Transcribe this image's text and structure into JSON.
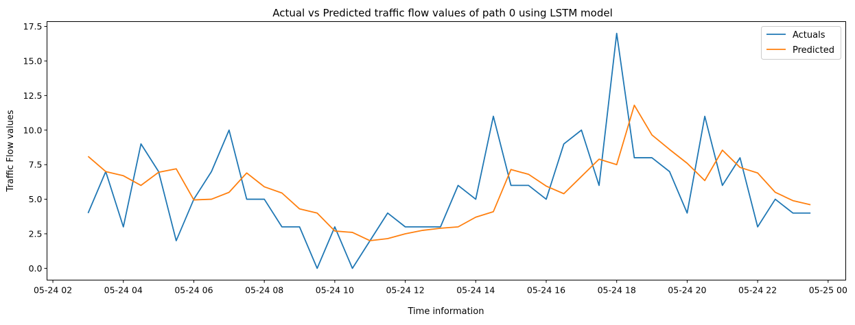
{
  "chart_data": {
    "type": "line",
    "title": "Actual vs Predicted traffic flow values of path 0 using LSTM model",
    "xlabel": "Time information",
    "ylabel": "Traffic Flow values",
    "x_tick_labels": [
      "05-24 02",
      "05-24 04",
      "05-24 06",
      "05-24 08",
      "05-24 10",
      "05-24 12",
      "05-24 14",
      "05-24 16",
      "05-24 18",
      "05-24 20",
      "05-24 22",
      "05-25 00"
    ],
    "y_tick_labels": [
      "0.0",
      "2.5",
      "5.0",
      "7.5",
      "10.0",
      "12.5",
      "15.0",
      "17.5"
    ],
    "y_ticks": [
      0,
      2.5,
      5,
      7.5,
      10,
      12.5,
      15,
      17.5
    ],
    "xlim": [
      "2024-05-24 01:50",
      "2024-05-25 00:30"
    ],
    "ylim": [
      -0.85,
      17.85
    ],
    "x": [
      "2024-05-24 03:00",
      "2024-05-24 03:30",
      "2024-05-24 04:00",
      "2024-05-24 04:30",
      "2024-05-24 05:00",
      "2024-05-24 05:30",
      "2024-05-24 06:00",
      "2024-05-24 06:30",
      "2024-05-24 07:00",
      "2024-05-24 07:30",
      "2024-05-24 08:00",
      "2024-05-24 08:30",
      "2024-05-24 09:00",
      "2024-05-24 09:30",
      "2024-05-24 10:00",
      "2024-05-24 10:30",
      "2024-05-24 11:00",
      "2024-05-24 11:30",
      "2024-05-24 12:00",
      "2024-05-24 12:30",
      "2024-05-24 13:00",
      "2024-05-24 13:30",
      "2024-05-24 14:00",
      "2024-05-24 14:30",
      "2024-05-24 15:00",
      "2024-05-24 15:30",
      "2024-05-24 16:00",
      "2024-05-24 16:30",
      "2024-05-24 17:00",
      "2024-05-24 17:30",
      "2024-05-24 18:00",
      "2024-05-24 18:30",
      "2024-05-24 19:00",
      "2024-05-24 19:30",
      "2024-05-24 20:00",
      "2024-05-24 20:30",
      "2024-05-24 21:00",
      "2024-05-24 21:30",
      "2024-05-24 22:00",
      "2024-05-24 22:30",
      "2024-05-24 23:00",
      "2024-05-24 23:30"
    ],
    "series": [
      {
        "name": "Actuals",
        "color": "#1f77b4",
        "values": [
          4,
          7,
          3,
          9,
          7,
          2,
          5,
          7,
          10,
          5,
          5,
          3,
          3,
          0,
          3,
          0,
          2,
          4,
          3,
          3,
          3,
          6,
          5,
          11,
          6,
          6,
          5,
          9,
          10,
          6,
          17,
          8,
          8,
          7,
          4,
          11,
          6,
          8,
          3,
          5,
          4,
          4
        ]
      },
      {
        "name": "Predicted",
        "color": "#ff7f0e",
        "values": [
          8.1,
          7.0,
          6.7,
          6.0,
          6.95,
          7.2,
          4.95,
          5.0,
          5.5,
          6.9,
          5.9,
          5.45,
          4.3,
          4.0,
          2.7,
          2.6,
          2.0,
          2.15,
          2.5,
          2.75,
          2.9,
          3.0,
          3.7,
          4.1,
          7.15,
          6.8,
          5.95,
          5.4,
          6.65,
          7.9,
          7.5,
          11.8,
          9.65,
          8.6,
          7.6,
          6.35,
          8.55,
          7.3,
          6.9,
          5.5,
          4.9,
          4.6
        ]
      }
    ],
    "grid": false,
    "legend_position": "top-right"
  }
}
